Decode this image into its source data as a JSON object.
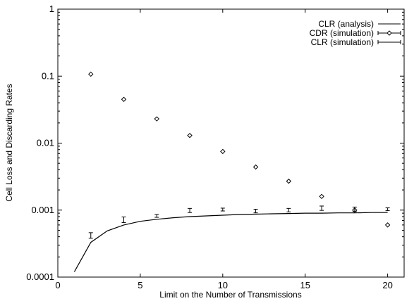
{
  "chart_data": {
    "type": "scatter",
    "title": "",
    "xlabel": "Limit on the Number of Transmissions",
    "ylabel": "Cell Loss and Discarding Rates",
    "xlim": [
      0,
      21
    ],
    "ylim": [
      0.0001,
      1
    ],
    "yscale": "log",
    "grid": false,
    "legend_position": "top-right",
    "x_ticks": [
      0,
      5,
      10,
      15,
      20
    ],
    "x_tick_labels": [
      "0",
      "5",
      "10",
      "15",
      "20"
    ],
    "y_ticks": [
      1,
      0.1,
      0.01,
      0.001,
      0.0001
    ],
    "y_tick_labels": [
      "1",
      "0.1",
      "0.01",
      "0.001",
      "0.0001"
    ],
    "series": [
      {
        "name": "CLR (analysis)",
        "style": "line",
        "x": [
          1,
          2,
          3,
          4,
          5,
          6,
          7,
          8,
          9,
          10,
          11,
          12,
          13,
          14,
          15,
          16,
          17,
          18,
          19,
          20
        ],
        "y": [
          0.00012,
          0.00033,
          0.00049,
          0.0006,
          0.00068,
          0.00073,
          0.00077,
          0.0008,
          0.00082,
          0.00084,
          0.00086,
          0.00087,
          0.00088,
          0.00089,
          0.0009,
          0.0009,
          0.00091,
          0.00091,
          0.00092,
          0.00092
        ]
      },
      {
        "name": "CDR (simulation)",
        "style": "diamond-errorbar",
        "x": [
          2,
          4,
          6,
          8,
          10,
          12,
          14,
          16,
          18,
          20
        ],
        "y": [
          0.107,
          0.045,
          0.023,
          0.013,
          0.0075,
          0.0044,
          0.0027,
          0.0016,
          0.001,
          0.0006
        ]
      },
      {
        "name": "CLR (simulation)",
        "style": "errorbar",
        "x": [
          2,
          4,
          6,
          8,
          10,
          12,
          14,
          16,
          18,
          20
        ],
        "y": [
          0.00042,
          0.00072,
          0.00082,
          0.00099,
          0.00102,
          0.00097,
          0.001,
          0.00107,
          0.00103,
          0.00103
        ],
        "y_low": [
          0.00038,
          0.00065,
          0.00078,
          0.00092,
          0.00097,
          0.00091,
          0.00094,
          0.00099,
          0.00095,
          0.00098
        ],
        "y_high": [
          0.00046,
          0.00079,
          0.00086,
          0.00106,
          0.00107,
          0.00103,
          0.00106,
          0.00115,
          0.00111,
          0.00108
        ]
      }
    ]
  }
}
